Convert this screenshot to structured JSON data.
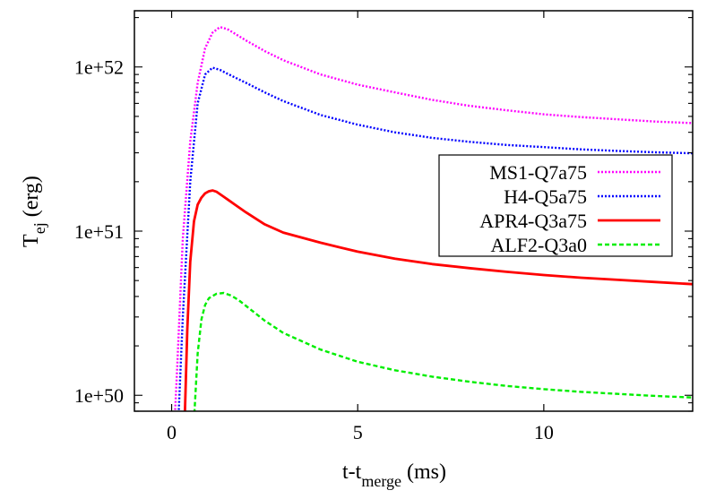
{
  "chart_data": {
    "type": "line",
    "xlabel_main": "t-t",
    "xlabel_sub": "merge",
    "xlabel_unit": " (ms)",
    "ylabel_main": "T",
    "ylabel_sub": "ej",
    "ylabel_unit": " (erg)",
    "xlim": [
      -1,
      14
    ],
    "ylim": [
      8e+49,
      2.2e+52
    ],
    "yscale": "log",
    "grid": false,
    "legend_position": "right",
    "x_ticks": [
      {
        "value": 0,
        "label": "0"
      },
      {
        "value": 5,
        "label": "5"
      },
      {
        "value": 10,
        "label": "10"
      }
    ],
    "y_ticks": [
      {
        "value": 1e+50,
        "label": "1e+50"
      },
      {
        "value": 1e+51,
        "label": "1e+51"
      },
      {
        "value": 1e+52,
        "label": "1e+52"
      }
    ],
    "series": [
      {
        "name": "MS1-Q7a75",
        "color": "#ff00ff",
        "style": "dotted",
        "x": [
          0.08,
          0.15,
          0.3,
          0.5,
          0.7,
          0.9,
          1.1,
          1.3,
          1.5,
          2.0,
          2.5,
          3.0,
          4.0,
          5.0,
          6.0,
          7.0,
          8.0,
          9.0,
          10.0,
          11.0,
          12.0,
          13.0,
          14.0
        ],
        "y": [
          7e+49,
          1.5e+50,
          9e+50,
          3.5e+51,
          8e+51,
          1.3e+52,
          1.62e+52,
          1.75e+52,
          1.7e+52,
          1.45e+52,
          1.25e+52,
          1.1e+52,
          9e+51,
          7.8e+51,
          7e+51,
          6.3e+51,
          5.8e+51,
          5.45e+51,
          5.15e+51,
          4.95e+51,
          4.8e+51,
          4.65e+51,
          4.55e+51
        ]
      },
      {
        "name": "H4-Q5a75",
        "color": "#0000ff",
        "style": "dotted",
        "x": [
          0.18,
          0.3,
          0.5,
          0.7,
          0.9,
          1.1,
          1.3,
          1.5,
          2.0,
          2.5,
          3.0,
          4.0,
          5.0,
          6.0,
          7.0,
          8.0,
          9.0,
          10.0,
          11.0,
          12.0,
          13.0,
          14.0
        ],
        "y": [
          7e+49,
          3e+50,
          2e+51,
          6e+51,
          9e+51,
          9.9e+51,
          9.6e+51,
          9.1e+51,
          8e+51,
          7e+51,
          6.2e+51,
          5.1e+51,
          4.45e+51,
          4e+51,
          3.7e+51,
          3.5e+51,
          3.35e+51,
          3.25e+51,
          3.15e+51,
          3.08e+51,
          3.02e+51,
          2.98e+51
        ]
      },
      {
        "name": "APR4-Q3a75",
        "color": "#ff0000",
        "style": "solid",
        "x": [
          0.35,
          0.42,
          0.5,
          0.6,
          0.7,
          0.8,
          0.9,
          1.0,
          1.1,
          1.2,
          1.4,
          1.7,
          2.0,
          2.5,
          3.0,
          4.0,
          5.0,
          6.0,
          7.0,
          8.0,
          9.0,
          10.0,
          11.0,
          12.0,
          13.0,
          14.0
        ],
        "y": [
          7e+49,
          2.5e+50,
          6.5e+50,
          1.15e+51,
          1.45e+51,
          1.6e+51,
          1.7e+51,
          1.75e+51,
          1.77e+51,
          1.74e+51,
          1.62e+51,
          1.45e+51,
          1.3e+51,
          1.1e+51,
          9.8e+50,
          8.5e+50,
          7.5e+50,
          6.8e+50,
          6.3e+50,
          5.95e+50,
          5.65e+50,
          5.4e+50,
          5.2e+50,
          5.05e+50,
          4.9e+50,
          4.75e+50
        ]
      },
      {
        "name": "ALF2-Q3a0",
        "color": "#00ee00",
        "style": "dashed",
        "x": [
          0.6,
          0.7,
          0.8,
          0.9,
          1.0,
          1.2,
          1.4,
          1.6,
          1.8,
          2.0,
          2.5,
          3.0,
          4.0,
          5.0,
          6.0,
          7.0,
          8.0,
          9.0,
          10.0,
          11.0,
          12.0,
          13.0,
          14.0
        ],
        "y": [
          7e+49,
          1.8e+50,
          2.9e+50,
          3.55e+50,
          3.9e+50,
          4.15e+50,
          4.2e+50,
          4.05e+50,
          3.8e+50,
          3.5e+50,
          2.85e+50,
          2.4e+50,
          1.9e+50,
          1.6e+50,
          1.42e+50,
          1.3e+50,
          1.21e+50,
          1.14e+50,
          1.09e+50,
          1.05e+50,
          1.02e+50,
          9.9e+49,
          9.7e+49
        ]
      }
    ]
  }
}
